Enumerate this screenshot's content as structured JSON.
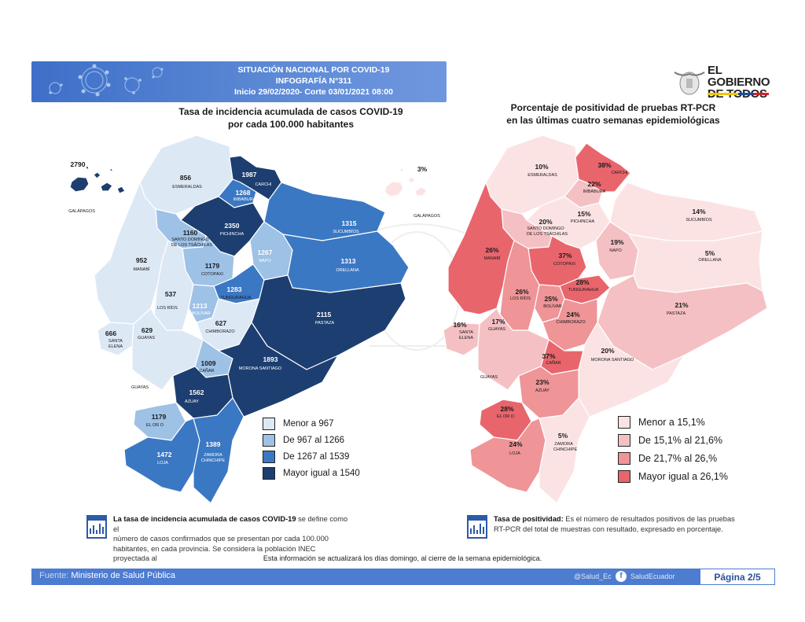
{
  "header": {
    "line1": "SITUACIÓN NACIONAL POR  COVID-19",
    "line2": "INFOGRAFÍA N°311",
    "line3": "Inicio 29/02/2020- Corte 03/01/2021 08:00"
  },
  "logo": {
    "line1": "EL",
    "line2": "GOBIERNO",
    "line3": "DE TODOS"
  },
  "left_map": {
    "title_line1": "Tasa de incidencia acumulada de casos COVID-19",
    "title_line2": "por cada 100.000 habitantes",
    "provinces": {
      "galapagos": {
        "name": "GALÁPAGOS",
        "value": "2790"
      },
      "esmeraldas": {
        "name": "ESMERALDAS",
        "value": "856"
      },
      "carchi": {
        "name": "CARCHI",
        "value": "1987"
      },
      "imbabura": {
        "name": "IMBABURA",
        "value": "1268"
      },
      "pichincha": {
        "name": "PICHINCHA",
        "value": "2350"
      },
      "sucumbios": {
        "name": "SUCUMBÍOS",
        "value": "1315"
      },
      "santo_domingo": {
        "name1": "SANTO DOMINGO",
        "name2": "DE LOS TSÁCHILAS",
        "value": "1160"
      },
      "napo": {
        "name": "NAPO",
        "value": "1267"
      },
      "orellana": {
        "name": "ORELLANA",
        "value": "1313"
      },
      "manabi": {
        "name": "MANABÍ",
        "value": "952"
      },
      "cotopaxi": {
        "name": "COTOPAXI",
        "value": "1179"
      },
      "tungurahua": {
        "name": "TUNGURAHUA",
        "value": "1283"
      },
      "los_rios": {
        "name": "LOS RÍOS",
        "value": "537"
      },
      "bolivar": {
        "name": "BOLÍVAR",
        "value": "1213"
      },
      "pastaza": {
        "name": "PASTAZA",
        "value": "2115"
      },
      "chimborazo": {
        "name": "CHIMBORAZO",
        "value": "627"
      },
      "santa_elena": {
        "name1": "SANTA",
        "name2": "ELENA",
        "value": "666"
      },
      "guayas": {
        "name": "GUAYAS",
        "value": "629"
      },
      "canar": {
        "name": "CAÑAR",
        "value": "1009"
      },
      "morona": {
        "name": "MORONA SANTIAGO",
        "value": "1893"
      },
      "azuay": {
        "name": "AZUAY",
        "value": "1562"
      },
      "el_oro": {
        "name": "EL OR O",
        "value": "1179"
      },
      "loja": {
        "name": "LOJA",
        "value": "1472"
      },
      "zamora": {
        "name1": "ZAMORA",
        "name2": "CHINCHIPE",
        "value": "1389"
      },
      "guayas_sea": {
        "name": "GUAYAS"
      }
    },
    "legend": [
      {
        "label": "Menor a 967",
        "color": "#dde8f5"
      },
      {
        "label": "De 967 al 1266",
        "color": "#9ec1e6"
      },
      {
        "label": "De 1267 al 1539",
        "color": "#3b78c3"
      },
      {
        "label": "Mayor igual a 1540",
        "color": "#1d3e70"
      }
    ]
  },
  "right_map": {
    "title_line1": "Porcentaje de positividad de pruebas RT-PCR",
    "title_line2": "en las últimas cuatro semanas epidemiológicas",
    "provinces": {
      "galapagos": {
        "name": "GALÁPAGOS",
        "value": "3%"
      },
      "esmeraldas": {
        "name": "ESMERALDAS",
        "value": "10%"
      },
      "carchi": {
        "name": "CARCHI",
        "value": "38%"
      },
      "imbabura": {
        "name": "IMBABURA",
        "value": "22%"
      },
      "pichincha": {
        "name": "PICHINCHA",
        "value": "15%"
      },
      "sucumbios": {
        "name": "SUCUMBÍOS",
        "value": "14%"
      },
      "santo_domingo": {
        "name1": "SANTO DOMINGO",
        "name2": "DE LOS TSÁCHILAS",
        "value": "20%"
      },
      "napo": {
        "name": "NAPO",
        "value": "19%"
      },
      "orellana": {
        "name": "ORELLANA",
        "value": "5%"
      },
      "manabi": {
        "name": "MANABÍ",
        "value": "26%"
      },
      "cotopaxi": {
        "name": "COTOPAXI",
        "value": "37%"
      },
      "tungurahua": {
        "name": "TUNGURAHUA",
        "value": "28%"
      },
      "los_rios": {
        "name": "LOS RÍOS",
        "value": "26%"
      },
      "bolivar": {
        "name": "BOLÍVAR",
        "value": "25%"
      },
      "pastaza": {
        "name": "PASTAZA",
        "value": "21%"
      },
      "chimborazo": {
        "name": "CHIMBORAZO",
        "value": "24%"
      },
      "santa_elena": {
        "name1": "SANTA",
        "name2": "ELENA",
        "value": "16%"
      },
      "guayas": {
        "name": "GUAYAS",
        "value": "17%"
      },
      "canar": {
        "name": "CAÑAR",
        "value": "37%"
      },
      "morona": {
        "name": "MORONA SANTIAGO",
        "value": "20%"
      },
      "azuay": {
        "name": "AZUAY",
        "value": "23%"
      },
      "el_oro": {
        "name": "EL OR O",
        "value": "28%"
      },
      "loja": {
        "name": "LOJA",
        "value": "24%"
      },
      "zamora": {
        "name1": "ZAMORA",
        "name2": "CHINCHIPE",
        "value": "5%"
      },
      "guayas_sea": {
        "name": "GUAYAS"
      }
    },
    "legend": [
      {
        "label": "Menor a 15,1%",
        "color": "#fbe3e4"
      },
      {
        "label": "De 15,1% al 21,6%",
        "color": "#f5c0c3"
      },
      {
        "label": "De 21,7% al 26,%",
        "color": "#ef9497"
      },
      {
        "label": "Mayor igual a 26,1%",
        "color": "#e9656c"
      }
    ]
  },
  "notes": {
    "left_bold": "La tasa de incidencia acumulada de casos COVID-19",
    "left_text1": " se define como el",
    "left_text2": "número de casos confirmados que se presentan por cada 100.000",
    "left_text3": "habitantes, en cada provincia. Se considera la población INEC proyectada al",
    "right_bold": "Tasa de positividad:",
    "right_text1": "  Es el número de resultados positivos de las pruebas",
    "right_text2": "RT-PCR del total de muestras con resultado, expresado en porcentaje."
  },
  "update_note": "Esta información se actualizará los días domingo, al cierre de la semana epidemiológica.",
  "footer": {
    "source_label": "Fuente: ",
    "source_value": "Ministerio de Salud Pública",
    "twitter": "@Salud_Ec",
    "facebook": "SaludEcuador",
    "page": "Página 2/5"
  }
}
